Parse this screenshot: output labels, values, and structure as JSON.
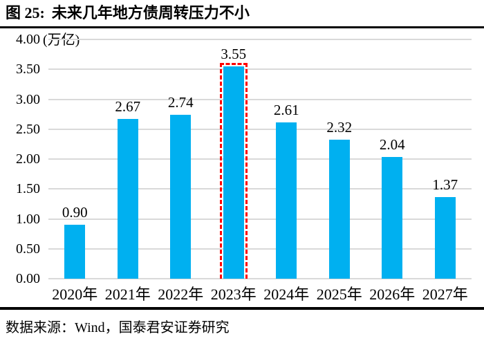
{
  "header": {
    "label": "图 25:",
    "title": "未来几年地方债周转压力不小"
  },
  "footer": {
    "source": "数据来源：Wind，国泰君安证券研究"
  },
  "colors": {
    "bar": "#00B0F0",
    "highlight_border": "#FF0000",
    "grid": "#D9D9D9",
    "rule": "#000000",
    "text": "#000000"
  },
  "chart_data": {
    "type": "bar",
    "title": "未来几年地方债周转压力不小",
    "unit_label": "(万亿)",
    "categories": [
      "2020年",
      "2021年",
      "2022年",
      "2023年",
      "2024年",
      "2025年",
      "2026年",
      "2027年"
    ],
    "values": [
      0.9,
      2.67,
      2.74,
      3.55,
      2.61,
      2.32,
      2.04,
      1.37
    ],
    "value_labels": [
      "0.90",
      "2.67",
      "2.74",
      "3.55",
      "2.61",
      "2.32",
      "2.04",
      "1.37"
    ],
    "ylim": [
      0.0,
      4.0
    ],
    "ytick_labels": [
      "0.00",
      "0.50",
      "1.00",
      "1.50",
      "2.00",
      "2.50",
      "3.00",
      "3.50",
      "4.00"
    ],
    "grid": true,
    "legend": "none",
    "highlight": {
      "index": 3,
      "style": "red-dashed-border"
    }
  }
}
